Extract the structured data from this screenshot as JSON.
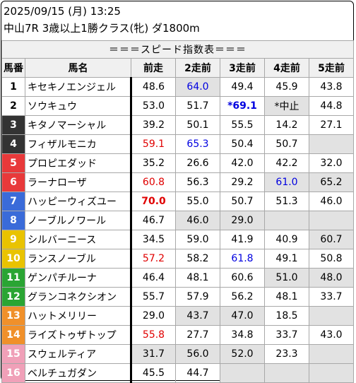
{
  "header": {
    "line1": "2025/09/15 (月) 13:25",
    "line2": "中山7R 3歳以上1勝クラス(牝) ダ1800m"
  },
  "table": {
    "title": "＝＝＝スピード指数表＝＝＝",
    "columns": [
      "馬番",
      "馬名",
      "前走",
      "2走前",
      "3走前",
      "4走前",
      "5走前"
    ],
    "rows": [
      {
        "num": "1",
        "name": "キセキノエンジェル",
        "v": [
          "48.6",
          "64.0",
          "49.4",
          "45.9",
          "43.8"
        ],
        "hl": [
          false,
          true,
          false,
          false,
          false
        ],
        "color": [
          "",
          "blue",
          "",
          "",
          ""
        ],
        "bold": [
          false,
          false,
          false,
          false,
          false
        ]
      },
      {
        "num": "2",
        "name": "ソウキュウ",
        "v": [
          "53.0",
          "51.7",
          "*69.1",
          "*中止",
          "44.8"
        ],
        "hl": [
          false,
          false,
          false,
          true,
          false
        ],
        "color": [
          "",
          "",
          "blue",
          "",
          ""
        ],
        "bold": [
          false,
          false,
          true,
          false,
          false
        ]
      },
      {
        "num": "3",
        "name": "キタノマーシャル",
        "v": [
          "39.2",
          "50.1",
          "55.5",
          "14.2",
          "27.1"
        ],
        "hl": [
          false,
          false,
          false,
          false,
          false
        ],
        "color": [
          "",
          "",
          "",
          "",
          ""
        ],
        "bold": [
          false,
          false,
          false,
          false,
          false
        ]
      },
      {
        "num": "4",
        "name": "フィザルモニカ",
        "v": [
          "59.1",
          "65.3",
          "50.4",
          "50.7",
          ""
        ],
        "hl": [
          false,
          false,
          false,
          false,
          false
        ],
        "color": [
          "red",
          "blue",
          "",
          "",
          ""
        ],
        "bold": [
          false,
          false,
          false,
          false,
          false
        ]
      },
      {
        "num": "5",
        "name": "プロピエダッド",
        "v": [
          "35.2",
          "26.6",
          "42.0",
          "42.2",
          "32.0"
        ],
        "hl": [
          false,
          false,
          false,
          false,
          false
        ],
        "color": [
          "",
          "",
          "",
          "",
          ""
        ],
        "bold": [
          false,
          false,
          false,
          false,
          false
        ]
      },
      {
        "num": "6",
        "name": "ラーナローザ",
        "v": [
          "60.8",
          "56.3",
          "29.2",
          "61.0",
          "65.2"
        ],
        "hl": [
          false,
          false,
          false,
          true,
          true
        ],
        "color": [
          "red",
          "",
          "",
          "blue",
          ""
        ],
        "bold": [
          false,
          false,
          false,
          false,
          false
        ]
      },
      {
        "num": "7",
        "name": "ハッピーウィズユー",
        "v": [
          "70.0",
          "55.0",
          "50.7",
          "51.3",
          "46.0"
        ],
        "hl": [
          false,
          false,
          false,
          false,
          false
        ],
        "color": [
          "red",
          "",
          "",
          "",
          ""
        ],
        "bold": [
          true,
          false,
          false,
          false,
          false
        ]
      },
      {
        "num": "8",
        "name": "ノーブルノワール",
        "v": [
          "46.7",
          "46.0",
          "29.0",
          "",
          ""
        ],
        "hl": [
          false,
          true,
          true,
          false,
          false
        ],
        "color": [
          "",
          "",
          "",
          "",
          ""
        ],
        "bold": [
          false,
          false,
          false,
          false,
          false
        ]
      },
      {
        "num": "9",
        "name": "シルバーニース",
        "v": [
          "34.5",
          "59.0",
          "41.9",
          "40.9",
          "60.7"
        ],
        "hl": [
          false,
          false,
          false,
          false,
          true
        ],
        "color": [
          "",
          "",
          "",
          "",
          ""
        ],
        "bold": [
          false,
          false,
          false,
          false,
          false
        ]
      },
      {
        "num": "10",
        "name": "ランスノーブル",
        "v": [
          "57.2",
          "58.2",
          "61.8",
          "49.1",
          "50.8"
        ],
        "hl": [
          false,
          false,
          false,
          false,
          false
        ],
        "color": [
          "red",
          "",
          "blue",
          "",
          ""
        ],
        "bold": [
          false,
          false,
          false,
          false,
          false
        ]
      },
      {
        "num": "11",
        "name": "ゲンパチルーナ",
        "v": [
          "46.4",
          "48.1",
          "60.6",
          "51.0",
          "48.0"
        ],
        "hl": [
          false,
          false,
          false,
          true,
          true
        ],
        "color": [
          "",
          "",
          "",
          "",
          ""
        ],
        "bold": [
          false,
          false,
          false,
          false,
          false
        ]
      },
      {
        "num": "12",
        "name": "グランコネクシオン",
        "v": [
          "55.7",
          "57.9",
          "56.2",
          "48.1",
          "33.7"
        ],
        "hl": [
          false,
          false,
          false,
          false,
          false
        ],
        "color": [
          "",
          "",
          "",
          "",
          ""
        ],
        "bold": [
          false,
          false,
          false,
          false,
          false
        ]
      },
      {
        "num": "13",
        "name": "ハットメリリー",
        "v": [
          "29.0",
          "43.7",
          "47.0",
          "18.5",
          ""
        ],
        "hl": [
          false,
          true,
          true,
          false,
          false
        ],
        "color": [
          "",
          "",
          "",
          "",
          ""
        ],
        "bold": [
          false,
          false,
          false,
          false,
          false
        ]
      },
      {
        "num": "14",
        "name": "ライズトゥザトップ",
        "v": [
          "55.8",
          "27.7",
          "34.8",
          "33.7",
          "43.0"
        ],
        "hl": [
          false,
          false,
          false,
          false,
          false
        ],
        "color": [
          "red",
          "",
          "",
          "",
          ""
        ],
        "bold": [
          false,
          false,
          false,
          false,
          false
        ]
      },
      {
        "num": "15",
        "name": "スウェルティア",
        "v": [
          "31.7",
          "56.0",
          "52.0",
          "23.3",
          ""
        ],
        "hl": [
          true,
          true,
          true,
          false,
          false
        ],
        "color": [
          "",
          "",
          "",
          "",
          ""
        ],
        "bold": [
          false,
          false,
          false,
          false,
          false
        ]
      },
      {
        "num": "16",
        "name": "ベルチュガダン",
        "v": [
          "45.5",
          "44.7",
          "",
          "",
          ""
        ],
        "hl": [
          false,
          false,
          false,
          false,
          false
        ],
        "color": [
          "",
          "",
          "",
          "",
          ""
        ],
        "bold": [
          false,
          false,
          false,
          false,
          false
        ]
      }
    ]
  }
}
